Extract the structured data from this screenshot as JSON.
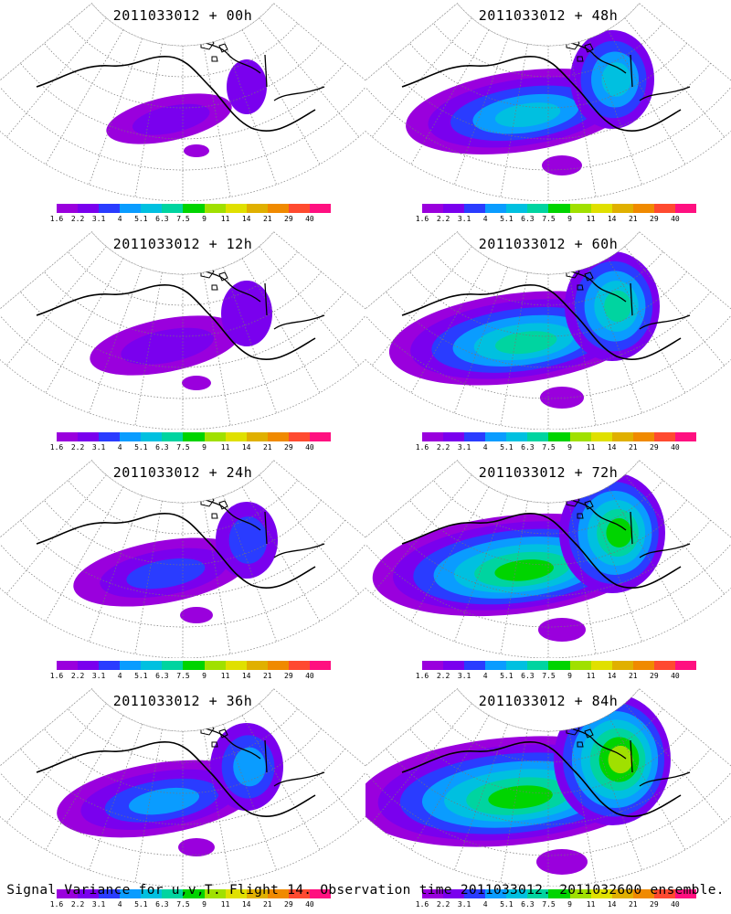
{
  "panels": [
    {
      "title": "2011033012 + 00h",
      "step": 0
    },
    {
      "title": "2011033012 + 48h",
      "step": 4
    },
    {
      "title": "2011033012 + 12h",
      "step": 1
    },
    {
      "title": "2011033012 + 60h",
      "step": 5
    },
    {
      "title": "2011033012 + 24h",
      "step": 2
    },
    {
      "title": "2011033012 + 72h",
      "step": 6
    },
    {
      "title": "2011033012 + 36h",
      "step": 3
    },
    {
      "title": "2011033012 + 84h",
      "step": 7
    }
  ],
  "colorbar": {
    "labels": [
      "1.6",
      "2.2",
      "3.1",
      "4",
      "5.1",
      "6.3",
      "7.5",
      "9",
      "11",
      "14",
      "21",
      "29",
      "40"
    ],
    "colors": [
      "#9a00dd",
      "#7a00ee",
      "#2a3cff",
      "#0a9cff",
      "#00c0e0",
      "#00d4a0",
      "#00d400",
      "#a0e000",
      "#e0e000",
      "#e0b000",
      "#f08a00",
      "#ff4a30",
      "#ff1080"
    ]
  },
  "footer": "Signal Variance for u,v,T. Flight 14. Observation time 2011033012. 2011032600 ensemble."
}
